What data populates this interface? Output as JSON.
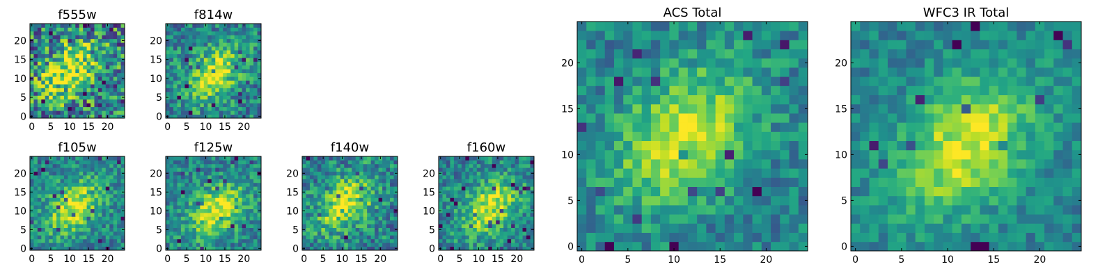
{
  "chart_data": {
    "type": "heatmap",
    "colormap": "viridis",
    "panels": [
      {
        "id": "f555w",
        "title": "f555w",
        "grid": [
          25,
          25
        ],
        "xlim": [
          0,
          24
        ],
        "ylim": [
          0,
          24
        ],
        "xticks": [
          "0",
          "5",
          "10",
          "15",
          "20"
        ],
        "yticks": [
          "0",
          "5",
          "10",
          "15",
          "20"
        ],
        "peak": [
          10,
          12
        ],
        "noise": 0.55,
        "seed": 11
      },
      {
        "id": "f814w",
        "title": "f814w",
        "grid": [
          25,
          25
        ],
        "xlim": [
          0,
          24
        ],
        "ylim": [
          0,
          24
        ],
        "xticks": [
          "0",
          "5",
          "10",
          "15",
          "20"
        ],
        "yticks": [
          "0",
          "5",
          "10",
          "15",
          "20"
        ],
        "peak": [
          12,
          11
        ],
        "noise": 0.35,
        "seed": 23
      },
      {
        "id": "f105w",
        "title": "f105w",
        "grid": [
          25,
          25
        ],
        "xlim": [
          0,
          24
        ],
        "ylim": [
          0,
          24
        ],
        "xticks": [
          "0",
          "5",
          "10",
          "15",
          "20"
        ],
        "yticks": [
          "0",
          "5",
          "10",
          "15",
          "20"
        ],
        "peak": [
          11,
          11
        ],
        "noise": 0.3,
        "seed": 37
      },
      {
        "id": "f125w",
        "title": "f125w",
        "grid": [
          25,
          25
        ],
        "xlim": [
          0,
          24
        ],
        "ylim": [
          0,
          24
        ],
        "xticks": [
          "0",
          "5",
          "10",
          "15",
          "20"
        ],
        "yticks": [
          "0",
          "5",
          "10",
          "15",
          "20"
        ],
        "peak": [
          13,
          10
        ],
        "noise": 0.3,
        "seed": 41
      },
      {
        "id": "f140w",
        "title": "f140w",
        "grid": [
          25,
          25
        ],
        "xlim": [
          0,
          24
        ],
        "ylim": [
          0,
          24
        ],
        "xticks": [
          "0",
          "5",
          "10",
          "15",
          "20"
        ],
        "yticks": [
          "0",
          "5",
          "10",
          "15",
          "20"
        ],
        "peak": [
          11,
          12
        ],
        "noise": 0.35,
        "seed": 53
      },
      {
        "id": "f160w",
        "title": "f160w",
        "grid": [
          25,
          25
        ],
        "xlim": [
          0,
          24
        ],
        "ylim": [
          0,
          24
        ],
        "xticks": [
          "0",
          "5",
          "10",
          "15",
          "20"
        ],
        "yticks": [
          "0",
          "5",
          "10",
          "15",
          "20"
        ],
        "peak": [
          13,
          11
        ],
        "noise": 0.3,
        "seed": 67
      },
      {
        "id": "acs-total",
        "title": "ACS Total",
        "grid": [
          25,
          25
        ],
        "xlim": [
          0,
          24
        ],
        "ylim": [
          0,
          24
        ],
        "xticks": [
          "0",
          "5",
          "10",
          "15",
          "20"
        ],
        "yticks": [
          "0",
          "5",
          "10",
          "15",
          "20"
        ],
        "peak": [
          11,
          12
        ],
        "noise": 0.25,
        "seed": 79
      },
      {
        "id": "wfc3-ir-total",
        "title": "WFC3 IR Total",
        "grid": [
          25,
          25
        ],
        "xlim": [
          0,
          24
        ],
        "ylim": [
          0,
          24
        ],
        "xticks": [
          "0",
          "5",
          "10",
          "15",
          "20"
        ],
        "yticks": [
          "0",
          "5",
          "10",
          "15",
          "20"
        ],
        "peak": [
          12,
          11
        ],
        "noise": 0.2,
        "seed": 97
      }
    ],
    "grid_lines": false,
    "legend": "none"
  }
}
